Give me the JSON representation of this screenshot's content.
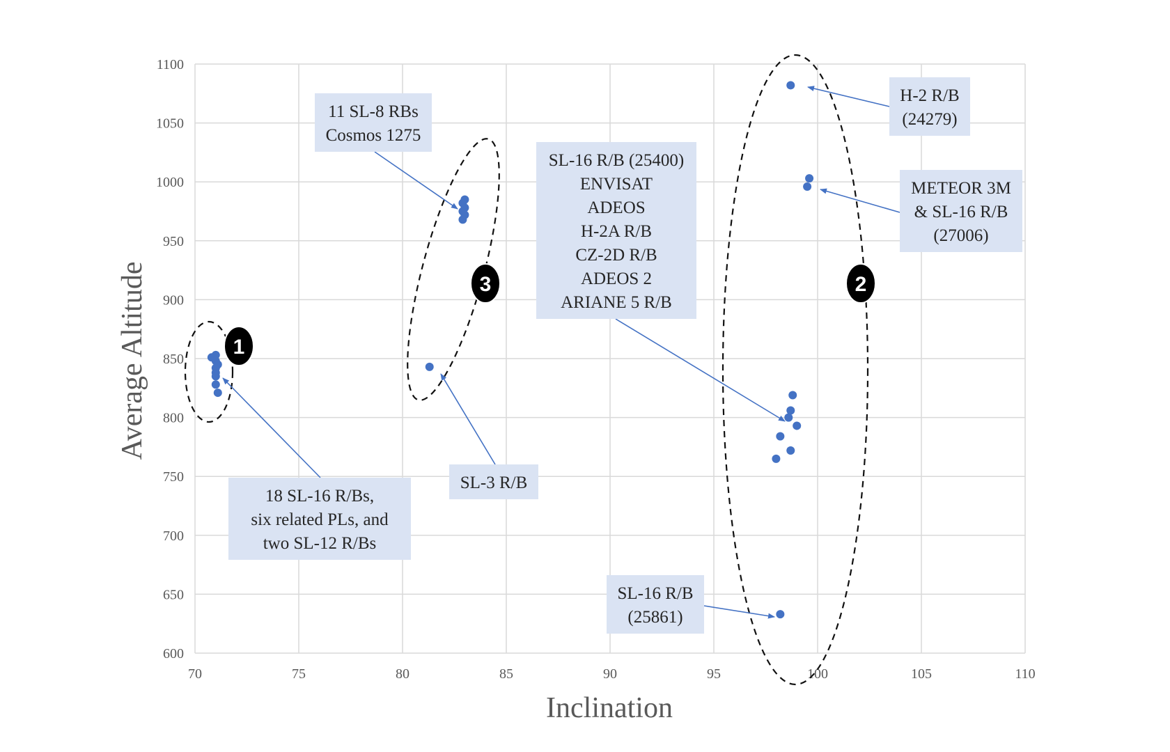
{
  "chart_data": {
    "type": "scatter",
    "xlabel": "Inclination",
    "ylabel": "Average Altitude",
    "xlim": [
      70,
      110
    ],
    "ylim": [
      600,
      1100
    ],
    "xticks": [
      70,
      75,
      80,
      85,
      90,
      95,
      100,
      105,
      110
    ],
    "yticks": [
      600,
      650,
      700,
      750,
      800,
      850,
      900,
      950,
      1000,
      1050,
      1100
    ],
    "grid": true,
    "point_color": "#4472C4",
    "points": [
      {
        "x": 70.8,
        "y": 851
      },
      {
        "x": 71.0,
        "y": 853
      },
      {
        "x": 71.0,
        "y": 848
      },
      {
        "x": 71.1,
        "y": 845
      },
      {
        "x": 71.0,
        "y": 842
      },
      {
        "x": 71.0,
        "y": 838
      },
      {
        "x": 71.0,
        "y": 835
      },
      {
        "x": 71.0,
        "y": 828
      },
      {
        "x": 71.1,
        "y": 821
      },
      {
        "x": 81.3,
        "y": 843
      },
      {
        "x": 83.0,
        "y": 985
      },
      {
        "x": 82.9,
        "y": 982
      },
      {
        "x": 83.0,
        "y": 978
      },
      {
        "x": 82.9,
        "y": 975
      },
      {
        "x": 83.0,
        "y": 972
      },
      {
        "x": 82.9,
        "y": 968
      },
      {
        "x": 98.7,
        "y": 1082
      },
      {
        "x": 99.6,
        "y": 1003
      },
      {
        "x": 99.5,
        "y": 996
      },
      {
        "x": 98.8,
        "y": 819
      },
      {
        "x": 98.7,
        "y": 806
      },
      {
        "x": 98.6,
        "y": 800
      },
      {
        "x": 99.0,
        "y": 793
      },
      {
        "x": 98.2,
        "y": 784
      },
      {
        "x": 98.7,
        "y": 772
      },
      {
        "x": 98.0,
        "y": 765
      },
      {
        "x": 98.2,
        "y": 633
      }
    ],
    "annotations": [
      {
        "lines": [
          "11 SL-8 RBs",
          "Cosmos 1275"
        ]
      },
      {
        "lines": [
          "SL-16 R/B (25400)",
          "ENVISAT",
          "ADEOS",
          "H-2A R/B",
          "CZ-2D R/B",
          "ADEOS 2",
          "ARIANE 5 R/B"
        ]
      },
      {
        "lines": [
          "H-2 R/B",
          "(24279)"
        ]
      },
      {
        "lines": [
          "METEOR 3M",
          "& SL-16 R/B",
          "(27006)"
        ]
      },
      {
        "lines": [
          "18 SL-16 R/Bs,",
          "six related PLs, and",
          "two SL-12 R/Bs"
        ]
      },
      {
        "lines": [
          "SL-3 R/B"
        ]
      },
      {
        "lines": [
          "SL-16 R/B",
          "(25861)"
        ]
      }
    ],
    "annotation_fill": "#DAE3F3",
    "groups": [
      {
        "label": "1"
      },
      {
        "label": "3"
      },
      {
        "label": "2"
      }
    ]
  }
}
